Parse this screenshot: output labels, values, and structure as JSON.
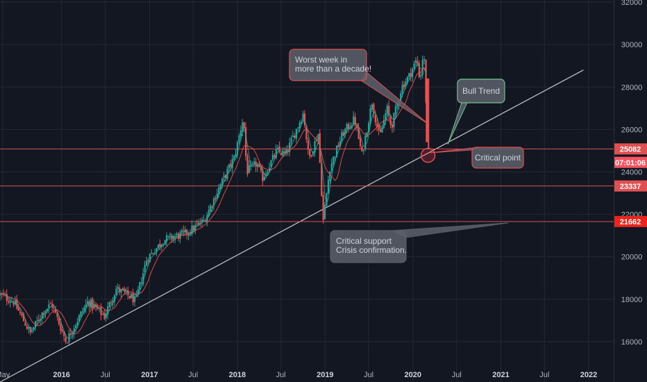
{
  "chart_data": {
    "type": "candlestick",
    "y_axis": {
      "ticks": [
        16000,
        18000,
        20000,
        22000,
        24000,
        26000,
        28000,
        30000,
        32000
      ],
      "ylim": [
        14100,
        32100
      ]
    },
    "x_axis": {
      "range": [
        "2015-04-20",
        "2022-04-15"
      ],
      "ticks": [
        {
          "label": "May",
          "date": "2015-05-01",
          "bold": false
        },
        {
          "label": "2016",
          "date": "2016-01-01",
          "bold": true
        },
        {
          "label": "Jul",
          "date": "2016-07-01",
          "bold": false
        },
        {
          "label": "2017",
          "date": "2017-01-01",
          "bold": true
        },
        {
          "label": "Jul",
          "date": "2017-07-01",
          "bold": false
        },
        {
          "label": "2018",
          "date": "2018-01-01",
          "bold": true
        },
        {
          "label": "Jul",
          "date": "2018-07-01",
          "bold": false
        },
        {
          "label": "2019",
          "date": "2019-01-01",
          "bold": true
        },
        {
          "label": "Jul",
          "date": "2019-07-01",
          "bold": false
        },
        {
          "label": "2020",
          "date": "2020-01-01",
          "bold": true
        },
        {
          "label": "Jul",
          "date": "2020-07-01",
          "bold": false
        },
        {
          "label": "2021",
          "date": "2021-01-01",
          "bold": true
        },
        {
          "label": "Jul",
          "date": "2021-07-01",
          "bold": false
        },
        {
          "label": "2022",
          "date": "2022-01-01",
          "bold": true
        }
      ]
    },
    "price_path": [
      [
        "2015-04-20",
        18200
      ],
      [
        "2015-06-15",
        17900
      ],
      [
        "2015-08-24",
        16400
      ],
      [
        "2015-10-15",
        17400
      ],
      [
        "2015-11-20",
        17800
      ],
      [
        "2016-01-20",
        16000
      ],
      [
        "2016-02-15",
        16600
      ],
      [
        "2016-04-20",
        17900
      ],
      [
        "2016-06-27",
        17200
      ],
      [
        "2016-08-15",
        18500
      ],
      [
        "2016-10-15",
        18100
      ],
      [
        "2016-11-04",
        17900
      ],
      [
        "2016-12-20",
        19900
      ],
      [
        "2017-03-01",
        20800
      ],
      [
        "2017-06-01",
        21100
      ],
      [
        "2017-08-15",
        21700
      ],
      [
        "2017-10-15",
        23200
      ],
      [
        "2017-12-20",
        24700
      ],
      [
        "2018-01-26",
        26600
      ],
      [
        "2018-02-09",
        24000
      ],
      [
        "2018-03-22",
        24400
      ],
      [
        "2018-04-15",
        23700
      ],
      [
        "2018-06-15",
        25000
      ],
      [
        "2018-07-20",
        24800
      ],
      [
        "2018-10-03",
        26800
      ],
      [
        "2018-10-25",
        24600
      ],
      [
        "2018-12-03",
        25800
      ],
      [
        "2018-12-24",
        21700
      ],
      [
        "2019-01-20",
        24200
      ],
      [
        "2019-03-15",
        25800
      ],
      [
        "2019-05-03",
        26500
      ],
      [
        "2019-06-03",
        24800
      ],
      [
        "2019-07-15",
        27300
      ],
      [
        "2019-08-15",
        25600
      ],
      [
        "2019-09-15",
        27000
      ],
      [
        "2019-10-03",
        26100
      ],
      [
        "2019-11-15",
        28000
      ],
      [
        "2019-12-15",
        28500
      ],
      [
        "2020-01-17",
        29300
      ],
      [
        "2020-01-31",
        28300
      ],
      [
        "2020-02-12",
        29550
      ],
      [
        "2020-02-21",
        28900
      ],
      [
        "2020-02-28",
        25400
      ]
    ],
    "moving_averages": [
      {
        "color": "#26a69a",
        "window": 4
      },
      {
        "color": "#ef5350",
        "window": 10
      }
    ],
    "horizontal_levels": [
      {
        "value": 25082,
        "label": "25082",
        "badge_color": "#e05050"
      },
      {
        "value": 23337,
        "label": "23337",
        "badge_color": "#e05050"
      },
      {
        "value": 21662,
        "label": "21662",
        "badge_color": "#e8241d"
      }
    ],
    "countdown_badge": {
      "label": "07:01:06",
      "value": 24450,
      "color": "#f7525f"
    },
    "trendline": {
      "start": [
        "2015-04-20",
        14100
      ],
      "end": [
        "2021-12-10",
        28800
      ],
      "color": "#c8c9cc"
    },
    "critical_point": {
      "date": "2020-03-04",
      "value": 24780
    },
    "annotations": [
      {
        "id": "worst-week",
        "lines": [
          "Worst week in",
          "more than a decade!"
        ],
        "border": "#e05050",
        "pointer_date": "2020-03-06",
        "pointer_value": 26250
      },
      {
        "id": "bull-trend",
        "lines": [
          "Bull Trend"
        ],
        "border": "#6fc38f",
        "pointer_date": "2020-05-25",
        "pointer_value": 25300
      },
      {
        "id": "critical-point",
        "lines": [
          "Critical point"
        ],
        "border": "#e05050",
        "pointer_date": "2020-03-10",
        "pointer_value": 24900
      },
      {
        "id": "critical-support",
        "lines": [
          "Critical support",
          "Crisis confirmation."
        ],
        "border": "#5a5d66",
        "pointer_date": "2021-02-01",
        "pointer_value": 21600
      }
    ]
  },
  "colors": {
    "background": "#131722",
    "grid": "#242836",
    "axis_text": "#b2b5be",
    "up": "#26a69a",
    "down": "#ef5350",
    "level_line": "#e05050"
  }
}
